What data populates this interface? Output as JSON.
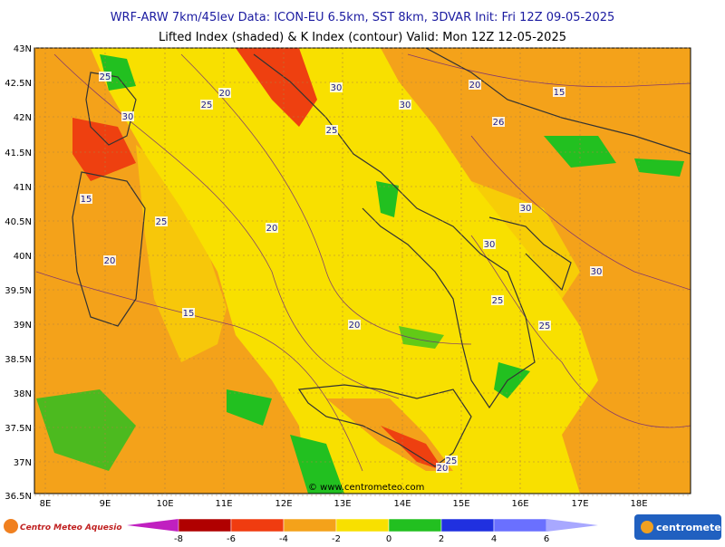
{
  "header": {
    "line1": "WRF-ARW 7km/45lev   Data: ICON-EU 6.5km, SST 8km, 3DVAR   Init: Fri 12Z 09-05-2025",
    "line2": "Lifted Index (shaded) & K Index (contour)  Valid: Mon 12Z 12-05-2025"
  },
  "lat_labels": [
    "43N",
    "42.5N",
    "42N",
    "41.5N",
    "41N",
    "40.5N",
    "40N",
    "39.5N",
    "39N",
    "38.5N",
    "38N",
    "37.5N",
    "37N",
    "36.5N"
  ],
  "lon_labels": [
    "8E",
    "9E",
    "10E",
    "11E",
    "12E",
    "13E",
    "14E",
    "15E",
    "16E",
    "17E",
    "18E"
  ],
  "contour_labels": [
    "25",
    "20",
    "25",
    "30",
    "30",
    "30",
    "25",
    "20",
    "15",
    "26",
    "15",
    "25",
    "20",
    "30",
    "30",
    "20",
    "30",
    "25",
    "15",
    "20",
    "25",
    "20",
    "25"
  ],
  "colorbar_ticks": [
    -8,
    -6,
    -4,
    -2,
    0,
    2,
    4,
    6
  ],
  "watermark": "© www.centrometeo.com",
  "logo_left": "Centro Meteo Aquesio",
  "logo_right": "centrometeo"
}
